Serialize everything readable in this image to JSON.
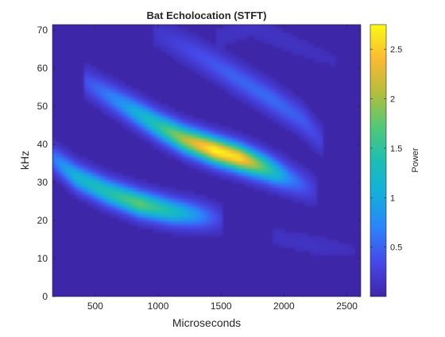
{
  "chart_data": {
    "type": "heatmap",
    "title": "Bat Echolocation (STFT)",
    "xlabel": "Microseconds",
    "ylabel": "kHz",
    "xlim": [
      160,
      2610
    ],
    "ylim": [
      0,
      71.5
    ],
    "xticks": [
      500,
      1000,
      1500,
      2000,
      2500
    ],
    "yticks": [
      0,
      10,
      20,
      30,
      40,
      50,
      60,
      70
    ],
    "colorbar": {
      "label": "Power",
      "limits": [
        0,
        2.75
      ],
      "ticks": [
        0.5,
        1,
        1.5,
        2,
        2.5
      ],
      "colormap": "parula"
    },
    "background_value": 0.05,
    "components": [
      {
        "name": "fundamental",
        "points": [
          [
            160,
            36.5,
            0.55
          ],
          [
            350,
            31.5,
            1.1
          ],
          [
            600,
            27.5,
            1.35
          ],
          [
            850,
            24.5,
            1.7
          ],
          [
            1100,
            22.5,
            1.3
          ],
          [
            1300,
            21.5,
            0.8
          ],
          [
            1500,
            20.5,
            0.2
          ]
        ],
        "width_khz": 2.3
      },
      {
        "name": "second-harmonic",
        "points": [
          [
            400,
            57,
            0.3
          ],
          [
            700,
            51,
            0.75
          ],
          [
            1000,
            45,
            1.4
          ],
          [
            1200,
            41.5,
            2.0
          ],
          [
            1450,
            38.5,
            2.7
          ],
          [
            1650,
            36.5,
            2.55
          ],
          [
            1850,
            34,
            1.6
          ],
          [
            2050,
            31,
            0.65
          ],
          [
            2250,
            28,
            0.15
          ]
        ],
        "width_khz": 2.4
      },
      {
        "name": "third-harmonic",
        "points": [
          [
            950,
            70,
            0.1
          ],
          [
            1300,
            64,
            0.3
          ],
          [
            1600,
            58,
            0.45
          ],
          [
            1900,
            52,
            0.5
          ],
          [
            2150,
            46.5,
            0.4
          ],
          [
            2300,
            41,
            0.2
          ]
        ],
        "width_khz": 2.5
      },
      {
        "name": "faint-trail",
        "points": [
          [
            1900,
            16,
            0.08
          ],
          [
            2250,
            13.5,
            0.1
          ],
          [
            2550,
            12,
            0.05
          ]
        ],
        "width_khz": 1.8
      },
      {
        "name": "upper-arc",
        "points": [
          [
            1450,
            68,
            0.08
          ],
          [
            1750,
            71,
            0.1
          ],
          [
            2100,
            66,
            0.08
          ],
          [
            2400,
            62,
            0.05
          ]
        ],
        "width_khz": 2.0
      }
    ]
  }
}
